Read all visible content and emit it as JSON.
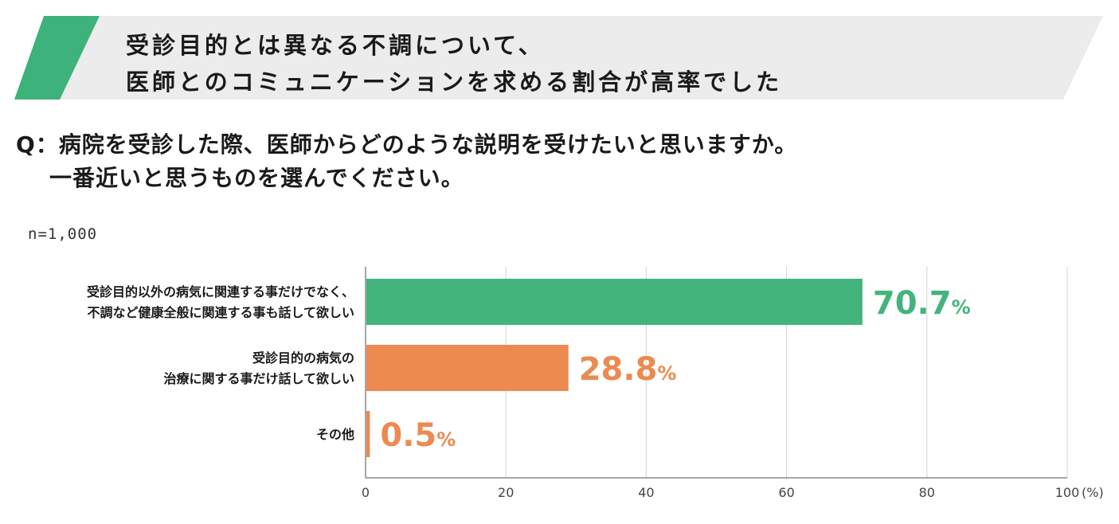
{
  "header": {
    "title_line1": "受診目的とは異なる不調について、",
    "title_line2": "医師とのコミュニケーションを求める割合が高率でした"
  },
  "question": {
    "line1": "Q：病院を受診した際、医師からどのような説明を受けたいと思いますか。",
    "line2": "一番近いと思うものを選んでください。"
  },
  "sample_size": "n=1,000",
  "colors": {
    "banner_bg": "#ececec",
    "banner_accent": "#3db27a",
    "green": "#43b47c",
    "orange": "#ec8a50"
  },
  "chart_data": {
    "type": "bar",
    "orientation": "horizontal",
    "categories": [
      [
        "受診目的以外の病気に関連する事だけでなく、",
        "不調など健康全般に関連する事も話して欲しい"
      ],
      [
        "受診目的の病気の",
        "治療に関する事だけ話して欲しい"
      ],
      [
        "その他"
      ]
    ],
    "values": [
      70.7,
      28.8,
      0.5
    ],
    "value_labels": [
      "70.7",
      "28.8",
      "0.5"
    ],
    "value_unit": "%",
    "bar_colors": [
      "#43b47c",
      "#ec8a50",
      "#ec8a50"
    ],
    "xlim": [
      0,
      100
    ],
    "xticks": [
      0,
      20,
      40,
      60,
      80,
      100
    ],
    "xtick_labels": [
      "0",
      "20",
      "40",
      "60",
      "80",
      "100"
    ],
    "x_unit_label": "(%)",
    "grid": true
  }
}
